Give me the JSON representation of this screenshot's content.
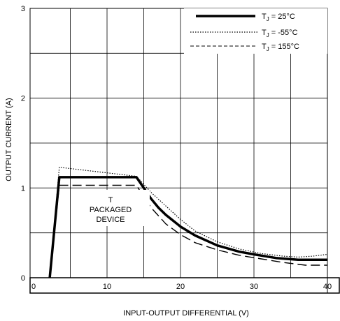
{
  "chart_data": {
    "type": "line",
    "title": "",
    "xlabel": "INPUT-OUTPUT DIFFERENTIAL (V)",
    "ylabel": "OUTPUT CURRENT (A)",
    "xlim": [
      0,
      40
    ],
    "ylim": [
      0,
      3
    ],
    "x_ticks": [
      "0",
      "10",
      "20",
      "30",
      "40"
    ],
    "y_ticks": [
      "0",
      "1",
      "2",
      "3"
    ],
    "grid": true,
    "legend_position": "top-right",
    "annotation": [
      "T",
      "PACKAGED",
      "DEVICE"
    ],
    "series": [
      {
        "name": "25°C",
        "style": "solid-thick",
        "color": "#000000",
        "points": [
          [
            2.2,
            0
          ],
          [
            3.5,
            1.12
          ],
          [
            14,
            1.12
          ],
          [
            15,
            1.0
          ],
          [
            16,
            0.88
          ],
          [
            17,
            0.78
          ],
          [
            18,
            0.7
          ],
          [
            20,
            0.57
          ],
          [
            22,
            0.47
          ],
          [
            25,
            0.36
          ],
          [
            28,
            0.29
          ],
          [
            30,
            0.26
          ],
          [
            33,
            0.22
          ],
          [
            36,
            0.2
          ],
          [
            38,
            0.2
          ],
          [
            40,
            0.2
          ]
        ]
      },
      {
        "name": "-55°C",
        "style": "dotted",
        "color": "#000000",
        "points": [
          [
            2.2,
            0
          ],
          [
            3.5,
            1.23
          ],
          [
            14,
            1.13
          ],
          [
            15,
            1.04
          ],
          [
            16,
            0.95
          ],
          [
            18,
            0.8
          ],
          [
            20,
            0.65
          ],
          [
            22,
            0.52
          ],
          [
            25,
            0.4
          ],
          [
            28,
            0.32
          ],
          [
            31,
            0.27
          ],
          [
            34,
            0.24
          ],
          [
            36,
            0.23
          ],
          [
            38,
            0.24
          ],
          [
            40,
            0.26
          ]
        ]
      },
      {
        "name": "155°C",
        "style": "dashed",
        "color": "#000000",
        "points": [
          [
            2.2,
            0
          ],
          [
            3.5,
            1.03
          ],
          [
            14,
            1.03
          ],
          [
            15,
            0.9
          ],
          [
            16,
            0.78
          ],
          [
            18,
            0.6
          ],
          [
            20,
            0.48
          ],
          [
            22,
            0.39
          ],
          [
            25,
            0.31
          ],
          [
            28,
            0.25
          ],
          [
            31,
            0.21
          ],
          [
            34,
            0.17
          ],
          [
            37,
            0.14
          ],
          [
            40,
            0.14
          ]
        ]
      }
    ]
  },
  "legend": [
    {
      "text": "T",
      "sub": "J",
      "rest": " = 25°C"
    },
    {
      "text": "T",
      "sub": "J",
      "rest": " = -55°C"
    },
    {
      "text": "T",
      "sub": "J",
      "rest": " = 155°C"
    }
  ]
}
